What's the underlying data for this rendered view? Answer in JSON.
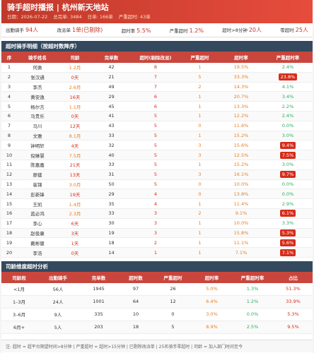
{
  "header": {
    "title": "骑手超时播报 | 杭州新天地站",
    "meta": [
      "日期：2026-07-22",
      "总完单: 3484",
      "日单: 166单",
      "严重超时: 43单"
    ]
  },
  "stats": [
    {
      "label": "出勤骑手",
      "value": "94人"
    },
    {
      "label": "改派单",
      "value": "1单(已剔除)"
    },
    {
      "label": "超时率",
      "value": "5.5%"
    },
    {
      "label": "严重超时",
      "value": "1.2%"
    },
    {
      "label": "超时>8分钟",
      "value": "20人"
    },
    {
      "label": "零超时",
      "value": "25人"
    }
  ],
  "detail": {
    "title": "超时骑手明细（按超时数降序）",
    "columns": [
      "序",
      "骑手姓名",
      "司龄",
      "完单数",
      "超时(剔除改派)",
      "严重超时",
      "超时率",
      "严重超时率"
    ],
    "rows": [
      [
        "1",
        "何勇",
        "1.2月",
        "42",
        "8",
        "1",
        "19.5%",
        "2.4%"
      ],
      [
        "2",
        "张汉通",
        "0天",
        "21",
        "7",
        "5",
        "33.3%",
        "23.8%"
      ],
      [
        "3",
        "李杰",
        "2.6月",
        "49",
        "7",
        "2",
        "14.3%",
        "4.1%"
      ],
      [
        "4",
        "黄安逸",
        "16天",
        "29",
        "6",
        "1",
        "20.7%",
        "3.4%"
      ],
      [
        "5",
        "杨尔言",
        "1.1月",
        "45",
        "6",
        "1",
        "13.3%",
        "2.2%"
      ],
      [
        "6",
        "马贵乐",
        "0天",
        "41",
        "5",
        "1",
        "12.2%",
        "2.4%"
      ],
      [
        "7",
        "马川",
        "12天",
        "43",
        "5",
        "0",
        "11.6%",
        "0.0%"
      ],
      [
        "8",
        "文雅",
        "8.1月",
        "33",
        "5",
        "1",
        "15.2%",
        "3.0%"
      ],
      [
        "9",
        "钟明轩",
        "4天",
        "32",
        "5",
        "3",
        "15.6%",
        "9.4%"
      ],
      [
        "10",
        "倪琳慧",
        "7.5月",
        "40",
        "5",
        "3",
        "12.5%",
        "7.5%"
      ],
      [
        "11",
        "陈嘉嘉",
        "21天",
        "33",
        "5",
        "1",
        "15.2%",
        "3.0%"
      ],
      [
        "12",
        "廖建",
        "13天",
        "31",
        "5",
        "3",
        "16.1%",
        "9.7%"
      ],
      [
        "13",
        "崔锦",
        "3.0月",
        "50",
        "5",
        "0",
        "10.0%",
        "0.0%"
      ],
      [
        "14",
        "彭新锋",
        "19天",
        "29",
        "4",
        "0",
        "13.8%",
        "0.0%"
      ],
      [
        "15",
        "王凯",
        "1.4月",
        "35",
        "4",
        "1",
        "11.4%",
        "2.9%"
      ],
      [
        "16",
        "蓝必鸿",
        "2.3月",
        "33",
        "3",
        "2",
        "9.1%",
        "6.1%"
      ],
      [
        "17",
        "李心",
        "6天",
        "30",
        "3",
        "1",
        "10.0%",
        "3.3%"
      ],
      [
        "18",
        "赵俊康",
        "3天",
        "19",
        "3",
        "1",
        "15.8%",
        "5.3%"
      ],
      [
        "19",
        "戴彬健",
        "1天",
        "18",
        "2",
        "1",
        "11.1%",
        "5.6%"
      ],
      [
        "20",
        "李浩",
        "0天",
        "14",
        "1",
        "1",
        "7.1%",
        "7.1%"
      ]
    ]
  },
  "tenure": {
    "title": "司龄维度超时分析",
    "columns": [
      "司龄段",
      "出勤骑手",
      "完单数",
      "超时数",
      "严重超时",
      "超时率",
      "严重超时率",
      "占比"
    ],
    "rows": [
      [
        "<1月",
        "56人",
        "1945",
        "97",
        "26",
        "5.0%",
        "1.3%",
        "51.3%"
      ],
      [
        "1–3月",
        "24人",
        "1001",
        "64",
        "12",
        "6.4%",
        "1.2%",
        "33.9%"
      ],
      [
        "3–6月",
        "9人",
        "335",
        "10",
        "0",
        "3.0%",
        "0.0%",
        "5.3%"
      ],
      [
        "6月+",
        "5人",
        "203",
        "18",
        "5",
        "8.9%",
        "2.5%",
        "9.5%"
      ]
    ]
  },
  "footer": "注: 超时 = 超平台期望时间>8分钟 | 严重超时 = 超时>15分钟 | 已剔除改派单 | 25名骑手零超时 | 司龄 = 加入部门时间至今"
}
